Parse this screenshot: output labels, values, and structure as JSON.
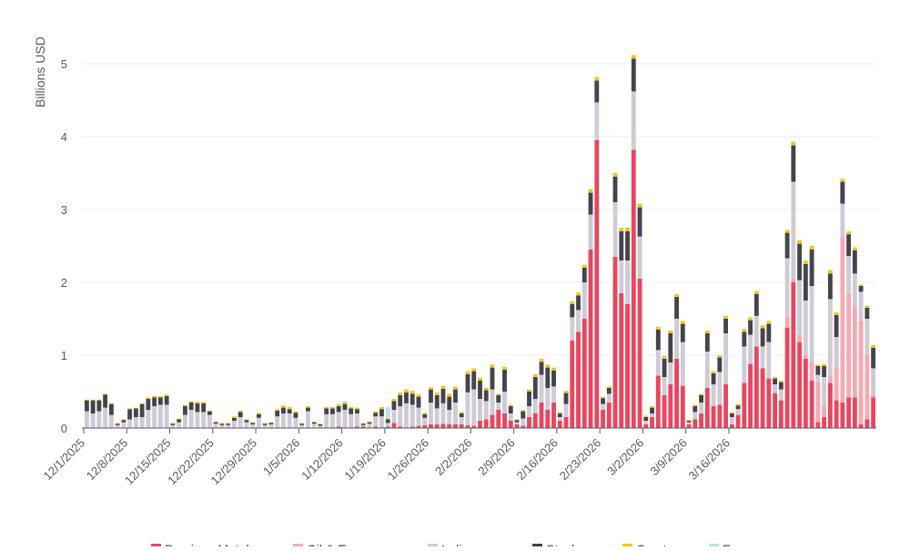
{
  "chart_data": {
    "type": "bar",
    "stacked": true,
    "ylabel": "Billions USD",
    "ylim": [
      0,
      5.2
    ],
    "yticks": [
      "0",
      "1",
      "2",
      "3",
      "4",
      "5"
    ],
    "grid": "horizontal",
    "legend_position": "bottom",
    "x_tick_labels": [
      "12/1/2025",
      "12/8/2025",
      "12/15/2025",
      "12/22/2025",
      "12/29/2025",
      "1/5/2026",
      "1/12/2026",
      "1/19/2026",
      "1/26/2026",
      "2/2/2026",
      "2/9/2026",
      "2/16/2026",
      "2/23/2026",
      "3/2/2026",
      "3/9/2026",
      "3/16/2026"
    ],
    "start_date": "2025-12-01",
    "series": [
      {
        "name": "Precious Metals",
        "color": "#e8465f",
        "values": [
          0,
          0,
          0,
          0,
          0,
          0,
          0,
          0,
          0,
          0,
          0,
          0,
          0,
          0,
          0,
          0,
          0,
          0,
          0,
          0,
          0,
          0,
          0,
          0,
          0,
          0,
          0,
          0,
          0,
          0,
          0,
          0,
          0,
          0,
          0,
          0,
          0.01,
          0,
          0,
          0.01,
          0.01,
          0.02,
          0,
          0.01,
          0.02,
          0.02,
          0.01,
          0.02,
          0.01,
          0.02,
          0.07,
          0.02,
          0.01,
          0.02,
          0.03,
          0.04,
          0.05,
          0.05,
          0.06,
          0.05,
          0.05,
          0.05,
          0.04,
          0.03,
          0.1,
          0.12,
          0.18,
          0.25,
          0.2,
          0.1,
          0.05,
          0.03,
          0.15,
          0.2,
          0.35,
          0.25,
          0.35,
          0.1,
          0.15,
          1.2,
          1.32,
          1.5,
          2.45,
          3.95,
          0.25,
          0.35,
          2.35,
          1.85,
          1.7,
          3.82,
          2.05,
          0.05,
          0.15,
          0.72,
          0.45,
          0.6,
          0.95,
          0.58,
          0.05,
          0.12,
          0.2,
          0.55,
          0.3,
          0.32,
          0.6,
          0.05,
          0.18,
          0.62,
          0.88,
          1.12,
          0.82,
          0.68,
          0.48,
          0.38,
          1.38,
          2,
          1.18,
          0.95,
          0.65,
          0.08,
          0.15,
          0.62,
          0.38,
          0.35,
          0.42,
          0.42,
          0.05,
          0.12,
          0.42
        ]
      },
      {
        "name": "Oil & Energy",
        "color": "#f4a9b3",
        "values": [
          0,
          0,
          0,
          0,
          0,
          0,
          0,
          0,
          0,
          0,
          0,
          0,
          0,
          0,
          0,
          0,
          0,
          0,
          0,
          0,
          0,
          0,
          0,
          0,
          0,
          0,
          0,
          0,
          0,
          0,
          0,
          0,
          0,
          0,
          0,
          0,
          0,
          0,
          0,
          0,
          0,
          0,
          0,
          0,
          0,
          0,
          0,
          0,
          0,
          0,
          0,
          0,
          0,
          0,
          0,
          0,
          0,
          0,
          0,
          0,
          0,
          0,
          0,
          0,
          0,
          0,
          0,
          0,
          0,
          0,
          0,
          0,
          0,
          0,
          0,
          0,
          0,
          0,
          0,
          0,
          0,
          0,
          0,
          0,
          0,
          0,
          0,
          0,
          0,
          0,
          0,
          0,
          0,
          0,
          0,
          0,
          0,
          0,
          0,
          0,
          0,
          0,
          0,
          0,
          0,
          0,
          0,
          0,
          0,
          0,
          0,
          0,
          0,
          0,
          0.15,
          0.05,
          0.1,
          0.05,
          0.25,
          0.55,
          0.15,
          0.1,
          0.45,
          2.28,
          1.42,
          1.25,
          1.42,
          0.88,
          0.05,
          0.45,
          0.95
        ]
      },
      {
        "name": "Indices",
        "color": "#cfcbd6",
        "values": [
          0.23,
          0.2,
          0.23,
          0.28,
          0.18,
          0.04,
          0.08,
          0.12,
          0.15,
          0.15,
          0.25,
          0.3,
          0.32,
          0.32,
          0.04,
          0.08,
          0.18,
          0.25,
          0.22,
          0.22,
          0.18,
          0.06,
          0.04,
          0.04,
          0.1,
          0.15,
          0.08,
          0.05,
          0.14,
          0.04,
          0.05,
          0.16,
          0.2,
          0.2,
          0.14,
          0.04,
          0.22,
          0.06,
          0.03,
          0.18,
          0.18,
          0.2,
          0.25,
          0.18,
          0.18,
          0.02,
          0.05,
          0.14,
          0.15,
          0.05,
          0.18,
          0.28,
          0.33,
          0.3,
          0.25,
          0.1,
          0.3,
          0.22,
          0.28,
          0.2,
          0.3,
          0.1,
          0.45,
          0.5,
          0.3,
          0.25,
          0.35,
          0.1,
          0.3,
          0.1,
          0.03,
          0.1,
          0.15,
          0.2,
          0.38,
          0.3,
          0.22,
          0.05,
          0.18,
          0.32,
          0.3,
          0.5,
          0.48,
          0.52,
          0.08,
          0.12,
          0.75,
          0.45,
          0.6,
          0.8,
          0.58,
          0.05,
          0.05,
          0.35,
          0.25,
          0.3,
          0.55,
          0.6,
          0.03,
          0.1,
          0.15,
          0.5,
          0.3,
          0.45,
          0.7,
          0.1,
          0.08,
          0.5,
          0.4,
          0.42,
          0.3,
          0.5,
          0.12,
          0.15,
          0.8,
          1.33,
          0.75,
          0.75,
          1.05,
          0.1,
          0.4,
          1.05,
          0.42,
          0.45,
          0.52,
          0.45,
          0.4,
          0.5,
          0.35
        ]
      },
      {
        "name": "Stocks",
        "color": "#45434c",
        "values": [
          0.15,
          0.18,
          0.15,
          0.18,
          0.15,
          0.02,
          0.03,
          0.14,
          0.12,
          0.18,
          0.15,
          0.12,
          0.1,
          0.12,
          0.02,
          0.04,
          0.12,
          0.1,
          0.12,
          0.12,
          0.05,
          0.02,
          0.02,
          0.02,
          0.04,
          0.07,
          0.03,
          0.02,
          0.05,
          0.02,
          0.02,
          0.08,
          0.08,
          0.06,
          0.07,
          0.02,
          0.05,
          0.02,
          0.02,
          0.08,
          0.08,
          0.08,
          0.08,
          0.08,
          0.06,
          0.02,
          0.02,
          0.05,
          0.1,
          0.05,
          0.12,
          0.15,
          0.15,
          0.15,
          0.15,
          0.05,
          0.18,
          0.18,
          0.2,
          0.18,
          0.18,
          0.05,
          0.25,
          0.25,
          0.25,
          0.15,
          0.3,
          0.1,
          0.3,
          0.1,
          0.03,
          0.1,
          0.2,
          0.3,
          0.18,
          0.28,
          0.22,
          0.05,
          0.15,
          0.18,
          0.2,
          0.2,
          0.3,
          0.3,
          0.08,
          0.08,
          0.35,
          0.4,
          0.4,
          0.45,
          0.4,
          0.05,
          0.08,
          0.28,
          0.25,
          0.4,
          0.3,
          0.25,
          0.02,
          0.08,
          0.1,
          0.25,
          0.15,
          0.2,
          0.2,
          0.05,
          0.05,
          0.2,
          0.2,
          0.3,
          0.25,
          0.25,
          0.08,
          0.1,
          0.35,
          0.5,
          0.5,
          0.5,
          0.5,
          0.12,
          0.15,
          0.35,
          0.3,
          0.3,
          0.3,
          0.32,
          0.08,
          0.15,
          0.28
        ]
      },
      {
        "name": "Crypto",
        "color": "#f5c518",
        "values": [
          0.01,
          0.01,
          0.01,
          0.01,
          0.01,
          0.01,
          0.01,
          0.01,
          0.01,
          0.01,
          0.02,
          0.02,
          0.02,
          0.02,
          0.01,
          0.01,
          0.02,
          0.02,
          0.02,
          0.02,
          0.01,
          0.01,
          0.01,
          0.01,
          0.02,
          0.02,
          0.01,
          0.01,
          0.02,
          0.01,
          0.01,
          0.02,
          0.03,
          0.03,
          0.02,
          0.01,
          0.02,
          0.01,
          0.01,
          0.02,
          0.02,
          0.02,
          0.02,
          0.02,
          0.02,
          0.01,
          0.01,
          0.02,
          0.03,
          0.02,
          0.03,
          0.04,
          0.04,
          0.04,
          0.03,
          0.02,
          0.03,
          0.04,
          0.04,
          0.04,
          0.04,
          0.02,
          0.04,
          0.04,
          0.04,
          0.03,
          0.04,
          0.02,
          0.04,
          0.02,
          0.01,
          0.02,
          0.03,
          0.04,
          0.04,
          0.04,
          0.04,
          0.02,
          0.03,
          0.04,
          0.04,
          0.04,
          0.05,
          0.05,
          0.02,
          0.02,
          0.05,
          0.05,
          0.05,
          0.05,
          0.05,
          0.02,
          0.02,
          0.04,
          0.04,
          0.04,
          0.04,
          0.04,
          0.01,
          0.02,
          0.02,
          0.04,
          0.03,
          0.03,
          0.04,
          0.02,
          0.02,
          0.04,
          0.04,
          0.04,
          0.04,
          0.04,
          0.02,
          0.02,
          0.04,
          0.05,
          0.05,
          0.05,
          0.05,
          0.02,
          0.03,
          0.05,
          0.04,
          0.04,
          0.04,
          0.04,
          0.02,
          0.03,
          0.04
        ]
      },
      {
        "name": "Forex",
        "color": "#b7e3ee",
        "values": [
          0,
          0,
          0,
          0,
          0,
          0,
          0,
          0,
          0,
          0,
          0,
          0,
          0,
          0,
          0,
          0,
          0,
          0,
          0,
          0,
          0,
          0,
          0,
          0,
          0,
          0,
          0,
          0,
          0,
          0,
          0,
          0,
          0,
          0,
          0,
          0,
          0,
          0,
          0,
          0,
          0,
          0.02,
          0.02,
          0,
          0,
          0,
          0,
          0,
          0,
          0.15,
          0,
          0,
          0,
          0,
          0,
          0,
          0,
          0,
          0,
          0,
          0,
          0,
          0,
          0,
          0,
          0,
          0,
          0,
          0,
          0,
          0,
          0,
          0,
          0,
          0,
          0,
          0,
          0,
          0,
          0,
          0,
          0,
          0,
          0,
          0,
          0,
          0,
          0,
          0,
          0,
          0,
          0,
          0,
          0,
          0,
          0,
          0,
          0,
          0,
          0,
          0,
          0,
          0,
          0,
          0,
          0,
          0,
          0,
          0,
          0,
          0,
          0,
          0,
          0,
          0,
          0,
          0,
          0,
          0,
          0,
          0,
          0,
          0,
          0,
          0,
          0,
          0,
          0,
          0,
          0,
          0
        ]
      }
    ]
  }
}
